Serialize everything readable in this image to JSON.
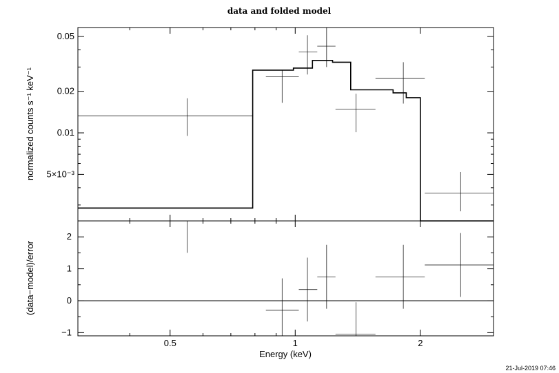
{
  "chart_data": [
    {
      "type": "line",
      "title": "data and folded model",
      "ylabel": "normalized counts s⁻¹ keV⁻¹",
      "xscale": "log",
      "yscale": "log",
      "xlim": [
        0.3,
        3.0
      ],
      "ylim": [
        0.0023,
        0.058
      ],
      "yticks": [
        {
          "value": 0.05,
          "label": "0.05"
        },
        {
          "value": 0.02,
          "label": "0.02"
        },
        {
          "value": 0.01,
          "label": "0.01"
        },
        {
          "value": 0.005,
          "label": "5×10⁻³"
        }
      ],
      "data_points": [
        {
          "xlo": 0.3,
          "xhi": 0.79,
          "x": 0.55,
          "y": 0.0133,
          "ylo": 0.0095,
          "yhi": 0.0178
        },
        {
          "xlo": 0.85,
          "xhi": 1.02,
          "x": 0.93,
          "y": 0.0255,
          "ylo": 0.0165,
          "yhi": 0.0285
        },
        {
          "xlo": 1.02,
          "xhi": 1.13,
          "x": 1.07,
          "y": 0.0385,
          "ylo": 0.0265,
          "yhi": 0.051
        },
        {
          "xlo": 1.13,
          "xhi": 1.25,
          "x": 1.19,
          "y": 0.0425,
          "ylo": 0.03,
          "yhi": 0.059
        },
        {
          "xlo": 1.25,
          "xhi": 1.56,
          "x": 1.4,
          "y": 0.0148,
          "ylo": 0.0101,
          "yhi": 0.0192
        },
        {
          "xlo": 1.56,
          "xhi": 2.05,
          "x": 1.82,
          "y": 0.0248,
          "ylo": 0.0163,
          "yhi": 0.0325
        },
        {
          "xlo": 2.05,
          "xhi": 3.0,
          "x": 2.5,
          "y": 0.00365,
          "ylo": 0.0027,
          "yhi": 0.0052
        }
      ],
      "model_steps": [
        {
          "xlo": 0.3,
          "xhi": 0.79,
          "y": 0.00285
        },
        {
          "xlo": 0.79,
          "xhi": 0.99,
          "y": 0.0285
        },
        {
          "xlo": 0.99,
          "xhi": 1.1,
          "y": 0.0295
        },
        {
          "xlo": 1.1,
          "xhi": 1.23,
          "y": 0.0335
        },
        {
          "xlo": 1.23,
          "xhi": 1.36,
          "y": 0.0325
        },
        {
          "xlo": 1.36,
          "xhi": 1.72,
          "y": 0.0205
        },
        {
          "xlo": 1.72,
          "xhi": 1.85,
          "y": 0.0195
        },
        {
          "xlo": 1.85,
          "xhi": 2.0,
          "y": 0.018
        },
        {
          "xlo": 2.0,
          "xhi": 3.0,
          "y": 0.0023
        }
      ]
    },
    {
      "type": "scatter",
      "ylabel": "(data−model)/error",
      "xlabel": "Energy (keV)",
      "xscale": "log",
      "xlim": [
        0.3,
        3.0
      ],
      "ylim": [
        -1.1,
        2.5
      ],
      "xticks": [
        {
          "value": 0.5,
          "label": "0.5"
        },
        {
          "value": 1,
          "label": "1"
        },
        {
          "value": 2,
          "label": "2"
        }
      ],
      "yticks": [
        {
          "value": 2,
          "label": "2"
        },
        {
          "value": 1,
          "label": "1"
        },
        {
          "value": 0,
          "label": "0"
        },
        {
          "value": -1,
          "label": "−1"
        }
      ],
      "zero_line": 0,
      "data_points": [
        {
          "xlo": 0.3,
          "xhi": 0.79,
          "x": 0.55,
          "y": 2.5,
          "ylo": 1.5,
          "yhi": 2.5
        },
        {
          "xlo": 0.85,
          "xhi": 1.02,
          "x": 0.93,
          "y": -0.3,
          "ylo": -1.1,
          "yhi": 0.7
        },
        {
          "xlo": 1.02,
          "xhi": 1.13,
          "x": 1.07,
          "y": 0.35,
          "ylo": -0.65,
          "yhi": 1.35
        },
        {
          "xlo": 1.13,
          "xhi": 1.25,
          "x": 1.19,
          "y": 0.75,
          "ylo": -0.25,
          "yhi": 1.75
        },
        {
          "xlo": 1.25,
          "xhi": 1.56,
          "x": 1.4,
          "y": -1.05,
          "ylo": -1.1,
          "yhi": -0.05
        },
        {
          "xlo": 1.56,
          "xhi": 2.05,
          "x": 1.82,
          "y": 0.75,
          "ylo": -0.25,
          "yhi": 1.75
        },
        {
          "xlo": 2.05,
          "xhi": 3.0,
          "x": 2.5,
          "y": 1.12,
          "ylo": 0.12,
          "yhi": 2.12
        }
      ]
    }
  ],
  "timestamp": "21-Jul-2019 07:46"
}
